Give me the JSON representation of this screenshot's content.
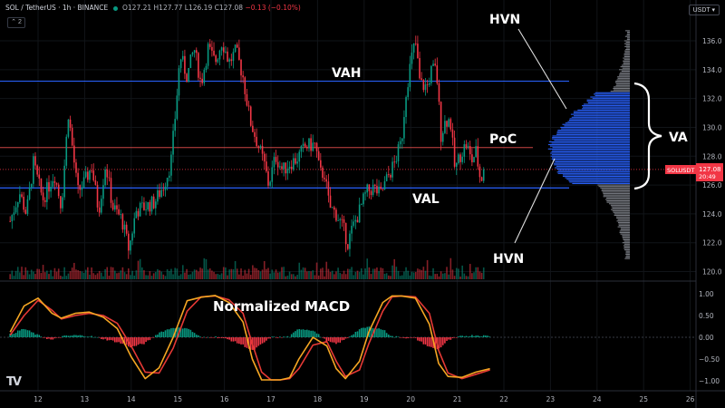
{
  "header": {
    "symbol": "SOL / TetherUS · 1h · BINANCE",
    "ohlc": "O127.21 H127.77 L126.19 C127.08",
    "change": "−0.13 (−0.10%)",
    "collapse_label": "⌃ 2",
    "currency": "USDT ▾",
    "logo": "TV"
  },
  "annotations": {
    "hvn_top": "HVN",
    "hvn_bottom": "HVN",
    "vah": "VAH",
    "poc": "PoC",
    "val": "VAL",
    "va": "VA",
    "macd_title": "Normalized MACD"
  },
  "price_tag": {
    "symbol": "SOLUSDT",
    "price": "127.08",
    "timer": "20:49",
    "color": "#f23645"
  },
  "colors": {
    "up": "#089981",
    "down": "#f23645",
    "level": "#2962ff",
    "poc": "#ef5350",
    "profile_va": "#2962ff",
    "profile_out": "#9598a1",
    "macd": "#f5a623",
    "signal": "#e53935"
  },
  "chart_data": [
    {
      "type": "candlestick",
      "x_ticks": [
        "12",
        "13",
        "14",
        "15",
        "16",
        "17",
        "18",
        "19",
        "20",
        "21",
        "22",
        "23",
        "24",
        "25",
        "26"
      ],
      "y_ticks": [
        120,
        122,
        124,
        126,
        128,
        130,
        132,
        134,
        136
      ],
      "ylim": [
        119.5,
        137.2
      ],
      "levels": {
        "vah": 133.2,
        "poc": 128.6,
        "val": 125.8,
        "last": 127.08
      },
      "price_path": [
        [
          11.4,
          123.5
        ],
        [
          11.6,
          125.5
        ],
        [
          11.75,
          124.0
        ],
        [
          11.9,
          127.5
        ],
        [
          12.1,
          125.0
        ],
        [
          12.35,
          126.8
        ],
        [
          12.5,
          124.5
        ],
        [
          12.65,
          131.0
        ],
        [
          12.85,
          125.5
        ],
        [
          13.0,
          126.2
        ],
        [
          13.15,
          127.3
        ],
        [
          13.3,
          124.2
        ],
        [
          13.45,
          127.5
        ],
        [
          13.6,
          124.5
        ],
        [
          13.8,
          123.6
        ],
        [
          13.95,
          121.5
        ],
        [
          14.1,
          124.2
        ],
        [
          14.3,
          124.5
        ],
        [
          14.5,
          124.8
        ],
        [
          14.7,
          126.0
        ],
        [
          14.85,
          127.5
        ],
        [
          14.95,
          131.0
        ],
        [
          15.05,
          135.0
        ],
        [
          15.2,
          133.5
        ],
        [
          15.35,
          135.5
        ],
        [
          15.5,
          133.0
        ],
        [
          15.65,
          135.5
        ],
        [
          15.8,
          134.5
        ],
        [
          15.95,
          136.0
        ],
        [
          16.1,
          134.5
        ],
        [
          16.25,
          135.3
        ],
        [
          16.4,
          133.5
        ],
        [
          16.55,
          130.5
        ],
        [
          16.7,
          129.0
        ],
        [
          16.85,
          127.5
        ],
        [
          16.95,
          126.0
        ],
        [
          17.1,
          128.0
        ],
        [
          17.25,
          127.0
        ],
        [
          17.4,
          127.5
        ],
        [
          17.55,
          127.8
        ],
        [
          17.75,
          128.7
        ],
        [
          17.95,
          128.8
        ],
        [
          18.05,
          126.8
        ],
        [
          18.15,
          126.8
        ],
        [
          18.25,
          124.5
        ],
        [
          18.4,
          124.0
        ],
        [
          18.55,
          123.0
        ],
        [
          18.65,
          122.0
        ],
        [
          18.75,
          123.0
        ],
        [
          18.9,
          124.2
        ],
        [
          19.05,
          125.5
        ],
        [
          19.2,
          125.8
        ],
        [
          19.35,
          125.3
        ],
        [
          19.5,
          126.5
        ],
        [
          19.65,
          127.5
        ],
        [
          19.8,
          129.0
        ],
        [
          19.9,
          132.5
        ],
        [
          20.0,
          134.5
        ],
        [
          20.1,
          136.0
        ],
        [
          20.2,
          133.0
        ],
        [
          20.35,
          132.8
        ],
        [
          20.45,
          134.0
        ],
        [
          20.55,
          134.0
        ],
        [
          20.65,
          129.5
        ],
        [
          20.75,
          130.5
        ],
        [
          20.85,
          130.5
        ],
        [
          20.95,
          127.0
        ],
        [
          21.05,
          128.0
        ],
        [
          21.2,
          128.9
        ],
        [
          21.3,
          127.6
        ],
        [
          21.4,
          128.3
        ],
        [
          21.5,
          126.3
        ],
        [
          21.6,
          127.08
        ]
      ]
    },
    {
      "type": "line",
      "title": "Normalized MACD",
      "y_ticks": [
        1.0,
        0.5,
        0.0,
        -0.5,
        -1.0
      ],
      "ylim": [
        -1.1,
        1.1
      ],
      "series": [
        {
          "key": "macd",
          "x": [
            11.4,
            11.7,
            12.0,
            12.3,
            12.5,
            12.8,
            13.1,
            13.4,
            13.7,
            14.0,
            14.3,
            14.6,
            14.9,
            15.2,
            15.5,
            15.8,
            16.1,
            16.4,
            16.6,
            16.8,
            17.0,
            17.2,
            17.4,
            17.6,
            17.9,
            18.2,
            18.4,
            18.6,
            18.9,
            19.1,
            19.4,
            19.6,
            19.8,
            20.1,
            20.4,
            20.6,
            20.8,
            21.1,
            21.4,
            21.7
          ],
          "values": [
            0.12,
            0.72,
            0.9,
            0.55,
            0.44,
            0.55,
            0.58,
            0.46,
            0.2,
            -0.45,
            -0.95,
            -0.7,
            0.0,
            0.84,
            0.92,
            0.96,
            0.8,
            0.35,
            -0.5,
            -0.98,
            -0.98,
            -0.98,
            -0.93,
            -0.5,
            0.0,
            -0.2,
            -0.72,
            -0.95,
            -0.55,
            0.12,
            0.8,
            0.95,
            0.95,
            0.9,
            0.3,
            -0.6,
            -0.9,
            -0.92,
            -0.8,
            -0.72
          ]
        },
        {
          "key": "signal",
          "x": [
            11.4,
            11.7,
            12.0,
            12.3,
            12.5,
            12.8,
            13.1,
            13.4,
            13.7,
            14.0,
            14.3,
            14.6,
            14.9,
            15.2,
            15.5,
            15.8,
            16.1,
            16.4,
            16.6,
            16.8,
            17.0,
            17.2,
            17.4,
            17.6,
            17.9,
            18.2,
            18.4,
            18.6,
            18.9,
            19.1,
            19.4,
            19.6,
            19.8,
            20.1,
            20.4,
            20.6,
            20.8,
            21.1,
            21.4,
            21.7
          ],
          "values": [
            0.05,
            0.5,
            0.85,
            0.62,
            0.42,
            0.5,
            0.55,
            0.5,
            0.32,
            -0.2,
            -0.8,
            -0.82,
            -0.25,
            0.6,
            0.93,
            0.95,
            0.86,
            0.55,
            -0.15,
            -0.8,
            -0.98,
            -0.98,
            -0.95,
            -0.72,
            -0.18,
            -0.1,
            -0.55,
            -0.9,
            -0.75,
            -0.15,
            0.6,
            0.93,
            0.95,
            0.93,
            0.55,
            -0.3,
            -0.82,
            -0.95,
            -0.85,
            -0.75
          ]
        }
      ]
    }
  ]
}
